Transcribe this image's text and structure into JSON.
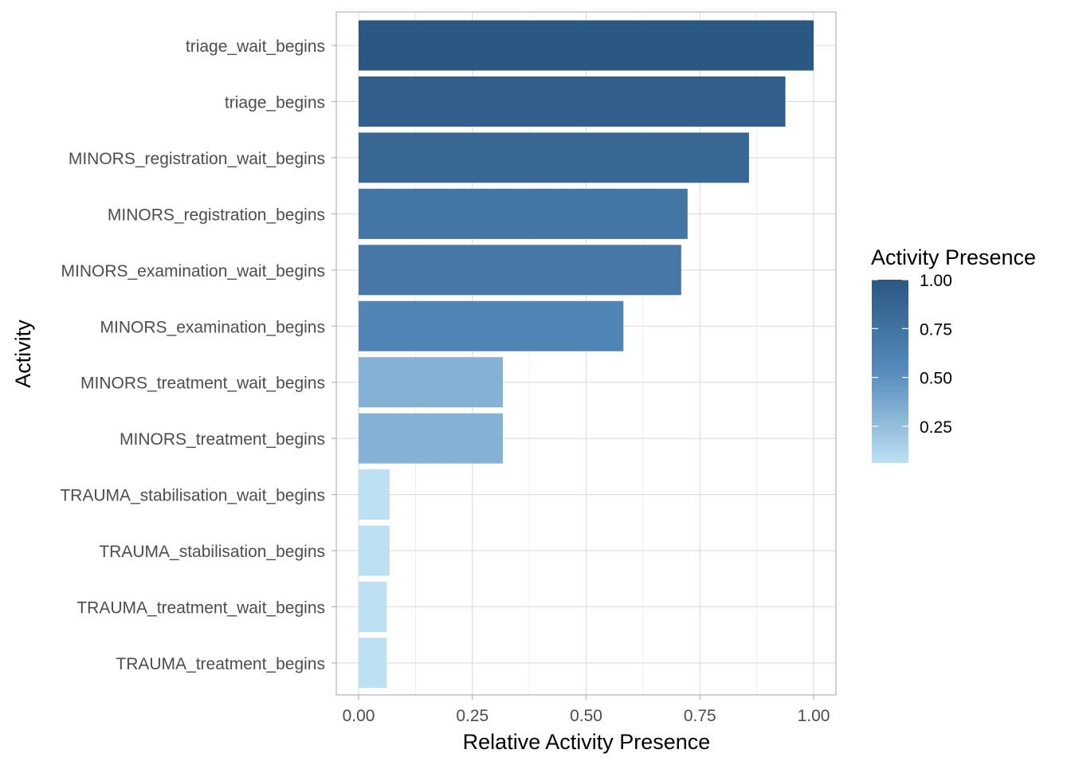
{
  "chart_data": {
    "type": "bar",
    "orientation": "horizontal",
    "title": "",
    "xlabel": "Relative Activity Presence",
    "ylabel": "Activity",
    "xlim": [
      0,
      1
    ],
    "x_ticks": [
      "0.00",
      "0.25",
      "0.50",
      "0.75",
      "1.00"
    ],
    "grid": true,
    "categories": [
      "triage_wait_begins",
      "triage_begins",
      "MINORS_registration_wait_begins",
      "MINORS_registration_begins",
      "MINORS_examination_wait_begins",
      "MINORS_examination_begins",
      "MINORS_treatment_wait_begins",
      "MINORS_treatment_begins",
      "TRAUMA_stabilisation_wait_begins",
      "TRAUMA_stabilisation_begins",
      "TRAUMA_treatment_wait_begins",
      "TRAUMA_treatment_begins"
    ],
    "values": [
      1.0,
      0.938,
      0.858,
      0.723,
      0.709,
      0.582,
      0.317,
      0.317,
      0.068,
      0.068,
      0.062,
      0.062
    ],
    "legend": {
      "title": "Activity Presence",
      "placement": "right",
      "ticks": [
        "1.00",
        "0.75",
        "0.50",
        "0.25"
      ],
      "range": [
        0.062,
        1.0
      ],
      "color_low": "#bde0f2",
      "color_high": "#2b5783"
    }
  }
}
